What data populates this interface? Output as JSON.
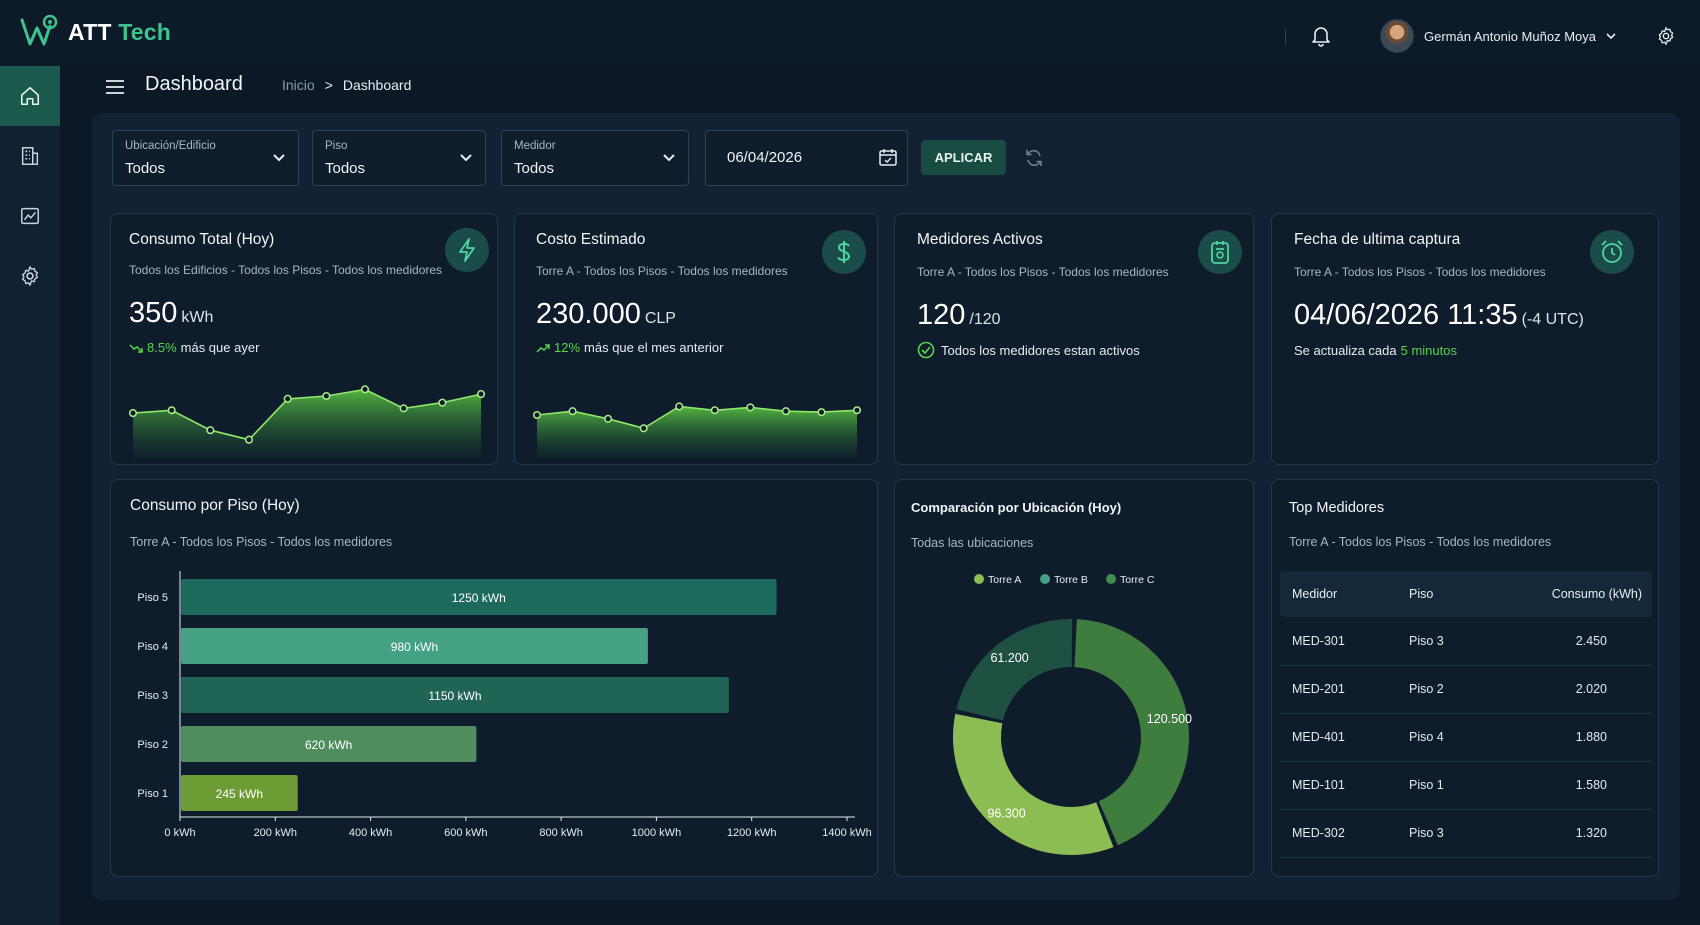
{
  "app": {
    "brand_part1": "ATT",
    "brand_part2": "Tech"
  },
  "user": {
    "name": "Germán Antonio Muñoz Moya"
  },
  "header": {
    "title": "Dashboard",
    "breadcrumb": [
      "Inicio",
      "Dashboard"
    ],
    "breadcrumb_sep": ">"
  },
  "sidebar": {
    "items": [
      "home-icon",
      "building-icon",
      "chart-icon",
      "gear-icon"
    ]
  },
  "filters": {
    "location": {
      "label": "Ubicación/Edificio",
      "value": "Todos"
    },
    "floor": {
      "label": "Piso",
      "value": "Todos"
    },
    "meter": {
      "label": "Medidor",
      "value": "Todos"
    },
    "date": "06/04/2026",
    "apply_label": "APLICAR"
  },
  "cards": {
    "consumo": {
      "title": "Consumo Total (Hoy)",
      "subtitle": "Todos los Edificios - Todos los Pisos - Todos los medidores",
      "value": "350",
      "unit": "kWh",
      "trend_pct": "8.5%",
      "trend_text": "más que ayer",
      "spark": [
        4.2,
        4.5,
        2.4,
        1.4,
        5.7,
        6.0,
        6.7,
        4.7,
        5.3,
        6.2
      ]
    },
    "costo": {
      "title": "Costo Estimado",
      "subtitle": "Torre A - Todos los Pisos - Todos los medidores",
      "value": "230.000",
      "unit": "CLP",
      "trend_pct": "12%",
      "trend_text": "más que el mes anterior",
      "spark": [
        4.0,
        4.4,
        3.6,
        2.6,
        4.9,
        4.5,
        4.8,
        4.4,
        4.3,
        4.5
      ]
    },
    "medidores": {
      "title": "Medidores Activos",
      "subtitle": "Torre A - Todos los Pisos - Todos los medidores",
      "value": "120",
      "unit": "/120",
      "status": "Todos los medidores estan activos"
    },
    "captura": {
      "title": "Fecha de ultima captura",
      "subtitle": "Torre A - Todos los Pisos - Todos los medidores",
      "value": "04/06/2026 11:35",
      "unit": "(-4 UTC)",
      "update_text": "Se actualiza cada",
      "update_value": "5 minutos"
    }
  },
  "floor_chart": {
    "title": "Consumo por Piso (Hoy)",
    "subtitle": "Torre A - Todos los Pisos - Todos los medidores"
  },
  "location_chart": {
    "title": "Comparación por Ubicación (Hoy)",
    "subtitle": "Todas las ubicaciones"
  },
  "top_meters": {
    "title": "Top Medidores",
    "subtitle": "Torre A - Todos los Pisos - Todos los medidores",
    "columns": [
      "Medidor",
      "Piso",
      "Consumo (kWh)"
    ],
    "rows": [
      [
        "MED-301",
        "Piso 3",
        "2.450"
      ],
      [
        "MED-201",
        "Piso 2",
        "2.020"
      ],
      [
        "MED-401",
        "Piso 4",
        "1.880"
      ],
      [
        "MED-101",
        "Piso 1",
        "1.580"
      ],
      [
        "MED-302",
        "Piso 3",
        "1.320"
      ]
    ]
  },
  "colors": {
    "accent": "#3ec28f",
    "positive": "#56d44c",
    "bg": "#0c1826",
    "card": "#0f1c2b"
  },
  "chart_data": [
    {
      "type": "bar",
      "orientation": "horizontal",
      "categories": [
        "Piso 5",
        "Piso 4",
        "Piso 3",
        "Piso 2",
        "Piso 1"
      ],
      "values": [
        1250,
        980,
        1150,
        620,
        245
      ],
      "value_labels": [
        "1250 kWh",
        "980 kWh",
        "1150 kWh",
        "620 kWh",
        "245 kWh"
      ],
      "bar_colors": [
        "#1c6a5b",
        "#45a184",
        "#1f6454",
        "#4f8d5c",
        "#6e9c34"
      ],
      "xlim": [
        0,
        1400
      ],
      "ticks": [
        0,
        200,
        400,
        600,
        800,
        1000,
        1200,
        1400
      ],
      "tick_labels": [
        "0 kWh",
        "200 kWh",
        "400 kWh",
        "600 kWh",
        "800 kWh",
        "1000 kWh",
        "1200 kWh",
        "1400 kWh"
      ]
    },
    {
      "type": "pie",
      "variant": "donut",
      "labels": [
        "Torre A",
        "Torre B",
        "Torre C"
      ],
      "values": [
        120500,
        96300,
        61200
      ],
      "value_labels": [
        "120.500",
        "96.300",
        "61.200"
      ],
      "colors": [
        "#3f7d3f",
        "#8bbd52",
        "#1e5141"
      ],
      "legend": "top-center"
    }
  ]
}
